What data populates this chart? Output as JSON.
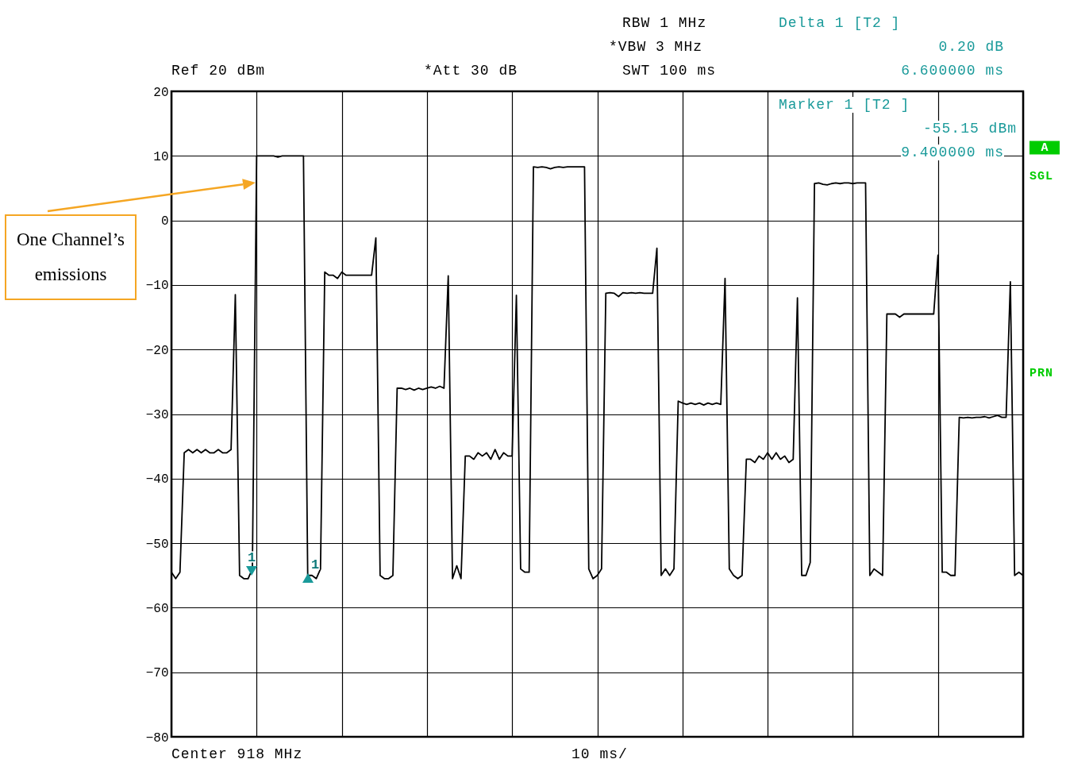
{
  "chart_data": {
    "type": "line",
    "annotations": [
      "RBW 1 MHz",
      "*VBW 3 MHz",
      "SWT 100 ms",
      "Ref 20 dBm",
      "*Att 30 dB",
      "Delta 1 [T2 ]",
      "0.20 dB",
      "6.600000 ms",
      "Marker 1 [T2 ]",
      "-55.15 dBm",
      "9.400000 ms",
      "A",
      "SGL",
      "PRN",
      "Center 918 MHz",
      "10 ms/",
      "One Channel’s emissions",
      "1",
      "1"
    ],
    "categories": [
      null,
      null,
      null,
      null,
      null,
      null,
      null,
      null,
      null,
      null,
      null,
      null,
      null,
      null,
      null,
      null,
      null,
      null,
      null,
      null,
      null,
      null,
      null,
      null,
      null,
      null,
      null,
      null,
      null,
      null,
      null,
      null,
      null,
      null,
      null,
      null,
      null,
      null,
      null,
      null,
      null,
      null,
      null,
      null,
      null,
      null,
      null,
      null,
      null,
      null,
      null,
      null,
      null,
      null,
      null,
      null,
      null,
      null,
      null,
      null,
      null,
      null,
      null,
      null,
      null,
      null,
      null,
      null,
      null,
      null,
      null,
      null,
      null,
      null,
      null,
      null,
      null,
      null,
      null,
      null,
      null,
      null,
      null,
      null,
      null,
      null,
      null,
      null,
      null,
      null,
      null,
      null,
      null,
      null,
      null,
      null,
      null,
      null,
      null,
      null,
      null,
      null,
      null,
      null,
      null,
      null,
      null,
      null,
      null,
      null,
      null,
      null,
      null,
      null,
      null,
      null,
      null,
      null,
      null,
      null,
      null,
      null,
      null,
      null,
      null,
      null,
      null,
      null,
      null,
      null,
      null,
      null,
      null,
      null,
      null,
      null,
      null,
      null,
      null,
      null,
      null,
      null,
      null,
      null,
      null,
      null,
      null,
      null,
      null,
      null,
      null,
      null,
      null,
      null,
      null,
      null,
      null,
      null,
      null,
      null,
      null,
      null,
      null,
      null,
      null,
      null,
      null,
      null,
      null,
      null,
      null,
      null,
      null,
      null,
      null,
      null,
      null,
      null,
      null,
      null,
      null,
      null,
      null,
      null,
      null,
      null,
      null,
      null,
      null,
      null,
      null,
      null,
      null,
      null,
      null,
      null,
      null,
      null,
      null,
      null,
      null
    ],
    "series": [
      {
        "color": "#000000",
        "values": [
          -54.5,
          -55.5,
          -54.5,
          -36,
          -35.5,
          -36,
          -35.5,
          -36,
          -35.5,
          -36,
          -36,
          -35.5,
          -36,
          -36,
          -35.5,
          -11.5,
          -55,
          -55.5,
          -55.5,
          -54,
          10,
          10,
          10,
          10,
          10,
          9.8,
          10,
          10,
          10,
          10,
          10,
          10,
          -55,
          -55,
          -55.5,
          -54,
          -8,
          -8.5,
          -8.5,
          -9,
          -8,
          -8.5,
          -8.5,
          -8.5,
          -8.5,
          -8.5,
          -8.5,
          -8.5,
          -2.7,
          -55,
          -55.5,
          -55.5,
          -55,
          -26,
          -26,
          -26.2,
          -26,
          -26.3,
          -26,
          -26.2,
          -26,
          -25.8,
          -26,
          -25.7,
          -26,
          -8.6,
          -55.5,
          -53.5,
          -55.5,
          -36.5,
          -36.5,
          -37,
          -36,
          -36.5,
          -36,
          -37,
          -35.5,
          -37,
          -36,
          -36.5,
          -36.5,
          -11.6,
          -54,
          -54.5,
          -54.5,
          8.3,
          8.2,
          8.3,
          8.2,
          8,
          8.2,
          8.3,
          8.2,
          8.3,
          8.3,
          8.3,
          8.3,
          8.3,
          -54,
          -55.5,
          -55,
          -54,
          -11.3,
          -11.2,
          -11.3,
          -11.8,
          -11.2,
          -11.3,
          -11.2,
          -11.3,
          -11.2,
          -11.3,
          -11.3,
          -11.3,
          -4.3,
          -55,
          -54,
          -55,
          -54,
          -28,
          -28.3,
          -28.5,
          -28.3,
          -28.5,
          -28.3,
          -28.6,
          -28.3,
          -28.5,
          -28.3,
          -28.5,
          -9,
          -54,
          -55,
          -55.5,
          -55,
          -37,
          -37,
          -37.5,
          -36.5,
          -37,
          -36,
          -37,
          -36,
          -37,
          -36.5,
          -37.5,
          -37,
          -12,
          -55,
          -55,
          -53,
          5.7,
          5.8,
          5.6,
          5.5,
          5.7,
          5.8,
          5.7,
          5.8,
          5.8,
          5.7,
          5.8,
          5.8,
          5.8,
          -55,
          -54,
          -54.5,
          -55,
          -14.5,
          -14.5,
          -14.5,
          -15,
          -14.5,
          -14.5,
          -14.5,
          -14.5,
          -14.5,
          -14.5,
          -14.5,
          -14.5,
          -5.4,
          -54.5,
          -54.5,
          -55,
          -55,
          -30.5,
          -30.6,
          -30.5,
          -30.6,
          -30.5,
          -30.5,
          -30.4,
          -30.6,
          -30.4,
          -30.2,
          -30.5,
          -30.5,
          -9.5,
          -55,
          -54.5,
          -55
        ]
      }
    ],
    "ylim": [
      -80,
      20
    ],
    "yticks": [
      20,
      10,
      0,
      -10,
      -20,
      -30,
      -40,
      -50,
      -60,
      -70,
      -80
    ],
    "tick_labels": "y",
    "grid": true
  }
}
